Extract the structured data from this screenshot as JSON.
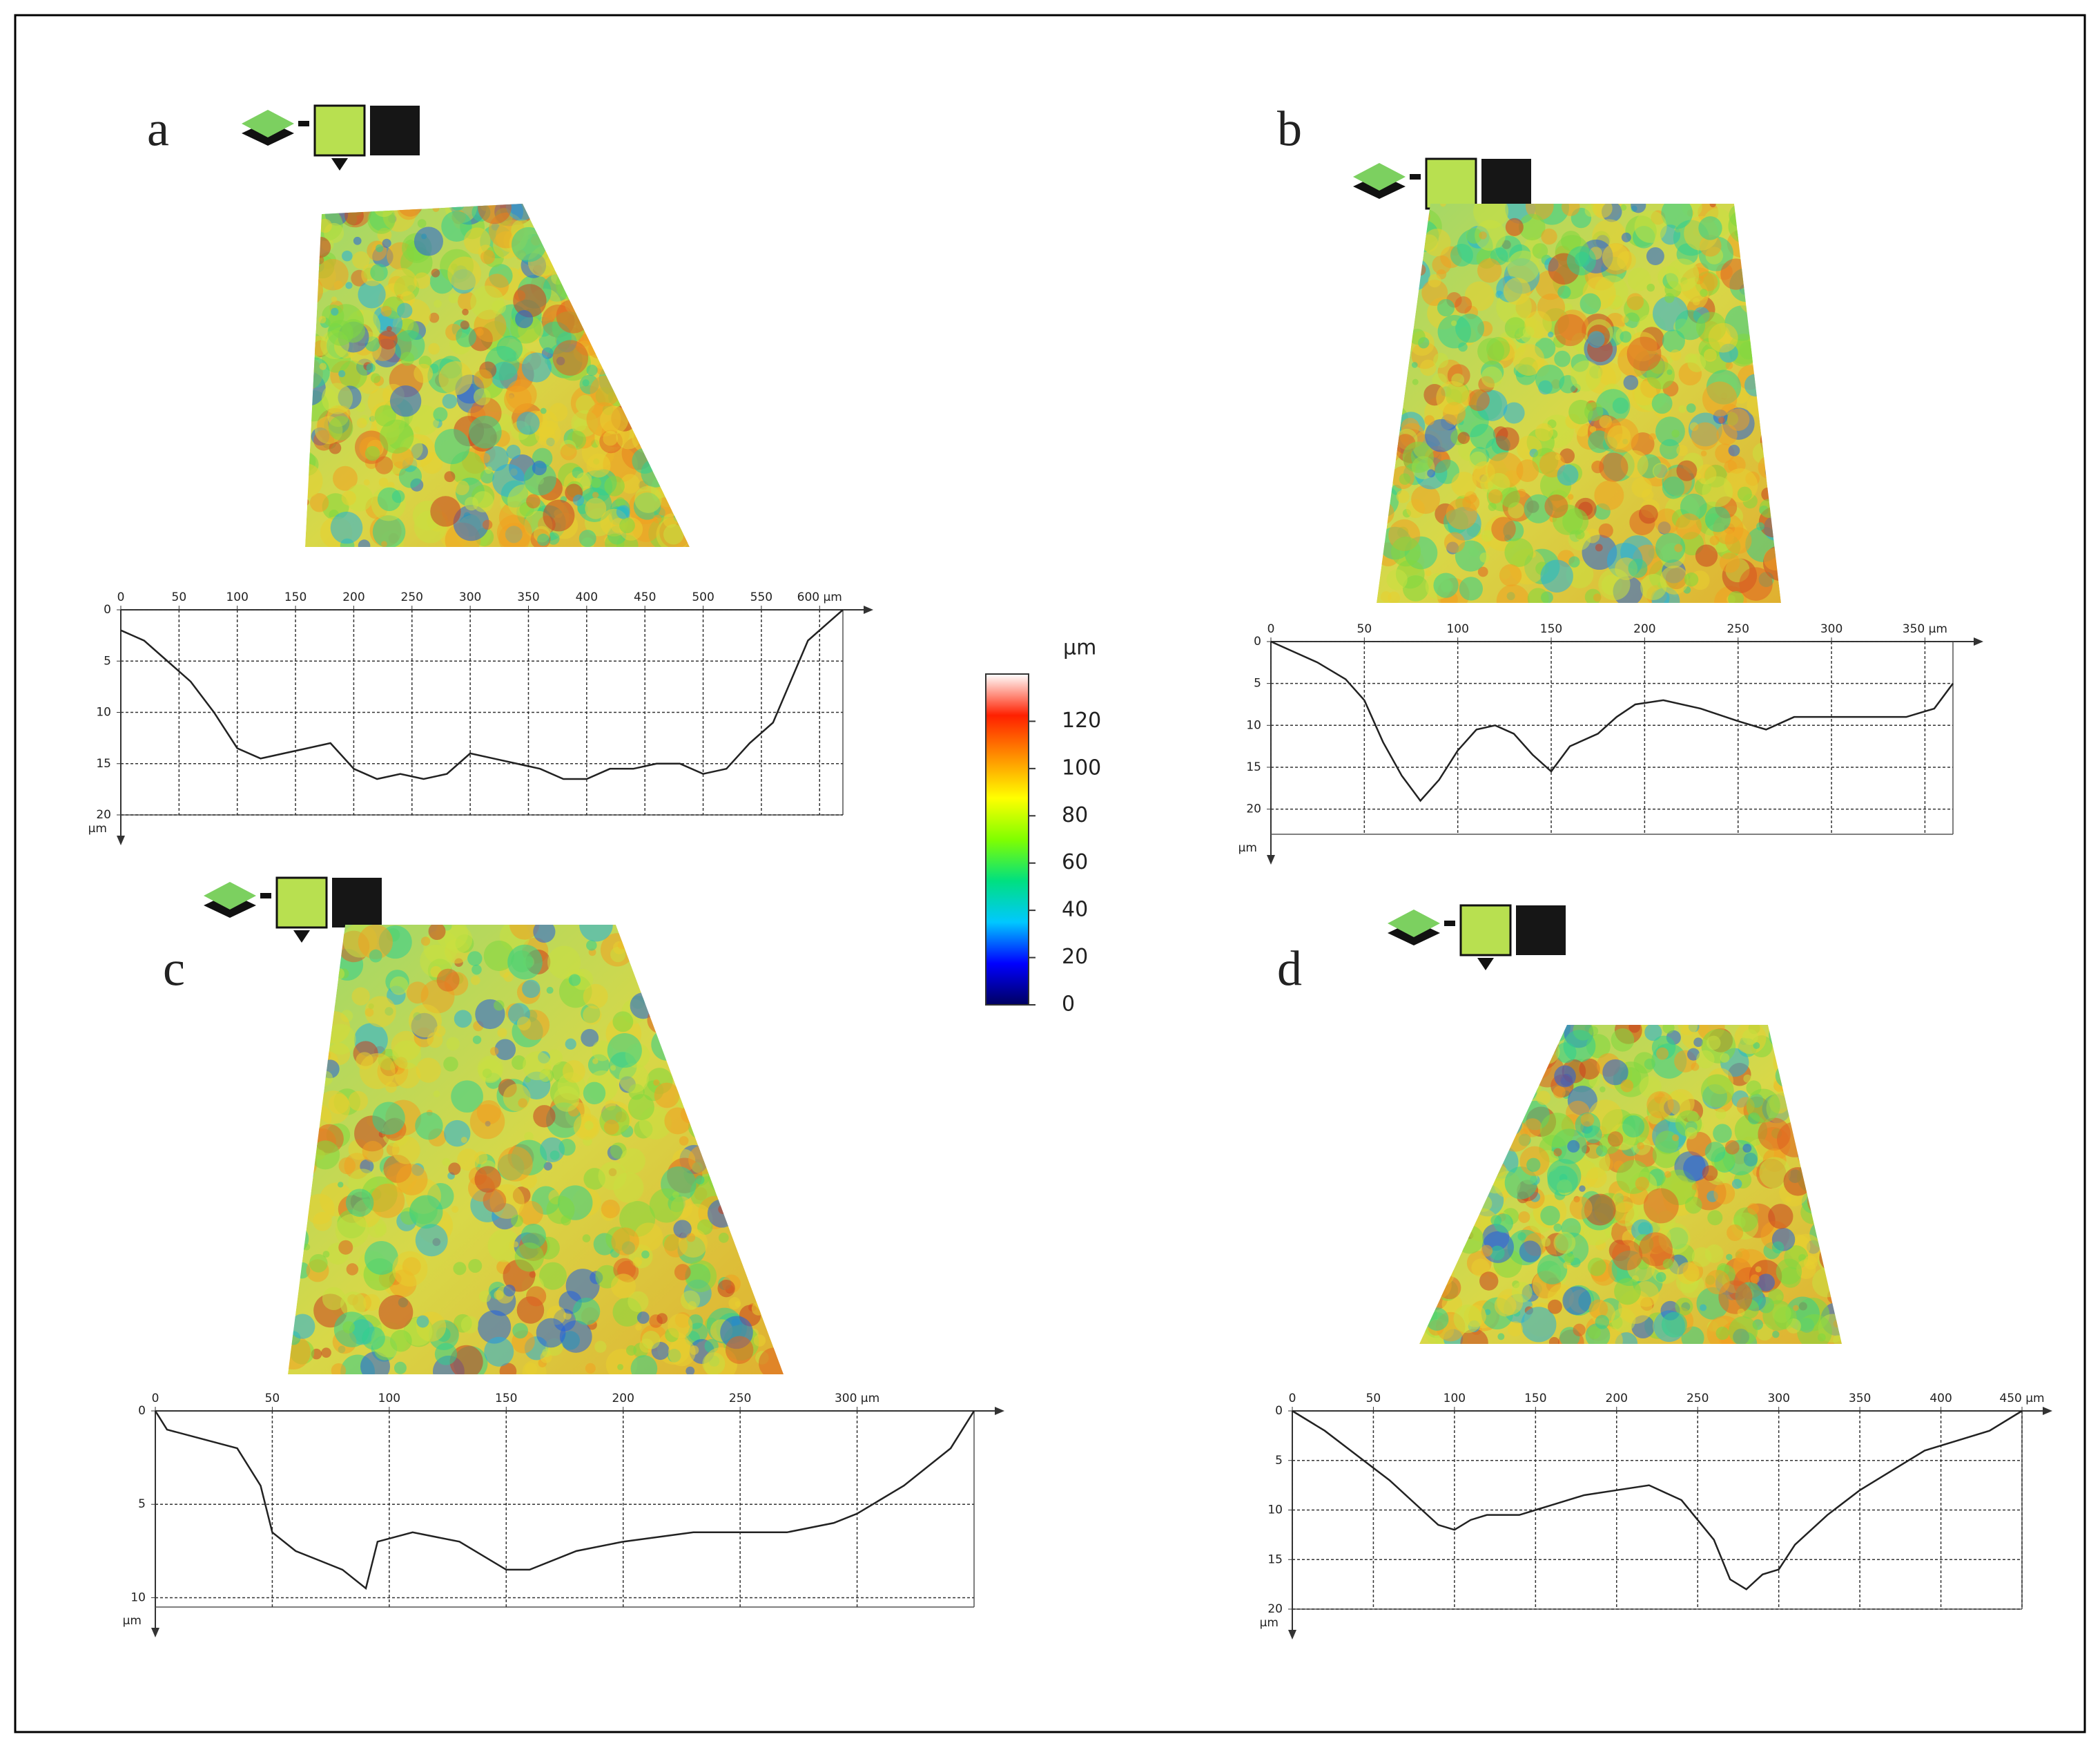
{
  "chart_data": [
    {
      "type": "line",
      "label": "a",
      "y_unit": "µm",
      "y_inverted": true,
      "grid": true,
      "color": "#222222",
      "xlim": [
        0,
        620
      ],
      "xticks": [
        0,
        50,
        100,
        150,
        200,
        250,
        300,
        350,
        400,
        450,
        500,
        550,
        {
          "value": 600,
          "label": "600 µm"
        }
      ],
      "ylim": [
        0,
        20
      ],
      "yticks": [
        0,
        5,
        10,
        15,
        20
      ],
      "x": [
        0,
        10,
        20,
        40,
        60,
        80,
        100,
        120,
        140,
        160,
        180,
        200,
        220,
        240,
        260,
        280,
        300,
        320,
        340,
        360,
        380,
        400,
        420,
        440,
        460,
        480,
        500,
        520,
        540,
        560,
        575,
        590,
        610,
        620
      ],
      "values": [
        2,
        2.5,
        3,
        5,
        7,
        10,
        13.5,
        14.5,
        14,
        13.5,
        13,
        15.5,
        16.5,
        16,
        16.5,
        16,
        14,
        14.5,
        15,
        15.5,
        16.5,
        16.5,
        15.5,
        15.5,
        15,
        15,
        16,
        15.5,
        13,
        11,
        7,
        3,
        1,
        0
      ]
    },
    {
      "type": "line",
      "label": "b",
      "y_unit": "µm",
      "y_inverted": true,
      "grid": true,
      "color": "#222222",
      "xlim": [
        0,
        365
      ],
      "xticks": [
        0,
        50,
        100,
        150,
        200,
        250,
        300,
        {
          "value": 350,
          "label": "350 µm"
        }
      ],
      "ylim": [
        0,
        23
      ],
      "yticks": [
        0,
        5,
        10,
        15,
        20
      ],
      "x": [
        0,
        10,
        25,
        40,
        50,
        60,
        70,
        80,
        90,
        100,
        110,
        120,
        130,
        140,
        150,
        160,
        175,
        185,
        195,
        210,
        230,
        250,
        265,
        280,
        300,
        320,
        340,
        355,
        365
      ],
      "values": [
        0,
        1,
        2.5,
        4.5,
        7,
        12,
        16,
        19,
        16.5,
        13,
        10.5,
        10,
        11,
        13.5,
        15.5,
        12.5,
        11,
        9,
        7.5,
        7,
        8,
        9.5,
        10.5,
        9,
        9,
        9,
        9,
        8,
        5
      ]
    },
    {
      "type": "line",
      "label": "c",
      "y_unit": "µm",
      "y_inverted": true,
      "grid": true,
      "color": "#222222",
      "xlim": [
        0,
        350
      ],
      "xticks": [
        0,
        50,
        100,
        150,
        200,
        250,
        {
          "value": 300,
          "label": "300 µm"
        }
      ],
      "ylim": [
        0,
        10.5
      ],
      "yticks": [
        0,
        5,
        10
      ],
      "x": [
        0,
        5,
        20,
        35,
        45,
        50,
        60,
        70,
        80,
        90,
        95,
        110,
        130,
        150,
        160,
        180,
        200,
        230,
        250,
        270,
        290,
        300,
        320,
        340,
        350
      ],
      "values": [
        0,
        1,
        1.5,
        2,
        4,
        6.5,
        7.5,
        8,
        8.5,
        9.5,
        7,
        6.5,
        7,
        8.5,
        8.5,
        7.5,
        7,
        6.5,
        6.5,
        6.5,
        6,
        5.5,
        4,
        2,
        0
      ]
    },
    {
      "type": "line",
      "label": "d",
      "y_unit": "µm",
      "y_inverted": true,
      "grid": true,
      "color": "#222222",
      "xlim": [
        0,
        450
      ],
      "xticks": [
        0,
        50,
        100,
        150,
        200,
        250,
        300,
        350,
        400,
        {
          "value": 450,
          "label": "450 µm"
        }
      ],
      "ylim": [
        0,
        20
      ],
      "yticks": [
        0,
        5,
        10,
        15,
        20
      ],
      "x": [
        0,
        20,
        40,
        60,
        80,
        90,
        100,
        110,
        120,
        140,
        150,
        160,
        180,
        200,
        220,
        240,
        260,
        270,
        280,
        290,
        300,
        310,
        330,
        350,
        370,
        390,
        410,
        430,
        450
      ],
      "values": [
        0,
        2,
        4.5,
        7,
        10,
        11.5,
        12,
        11,
        10.5,
        10.5,
        10,
        9.5,
        8.5,
        8,
        7.5,
        9,
        13,
        17,
        18,
        16.5,
        16,
        13.5,
        10.5,
        8,
        6,
        4,
        3,
        2,
        0
      ]
    },
    {
      "type": "colorbar",
      "title": "µm",
      "lim": [
        0,
        140
      ],
      "ticks": [
        0,
        20,
        40,
        60,
        80,
        100,
        120
      ],
      "colors": [
        "#000060",
        "#0000ff",
        "#00c8ff",
        "#00e080",
        "#80ff00",
        "#ffff00",
        "#ff9000",
        "#ff2000",
        "#ffffff"
      ]
    }
  ]
}
